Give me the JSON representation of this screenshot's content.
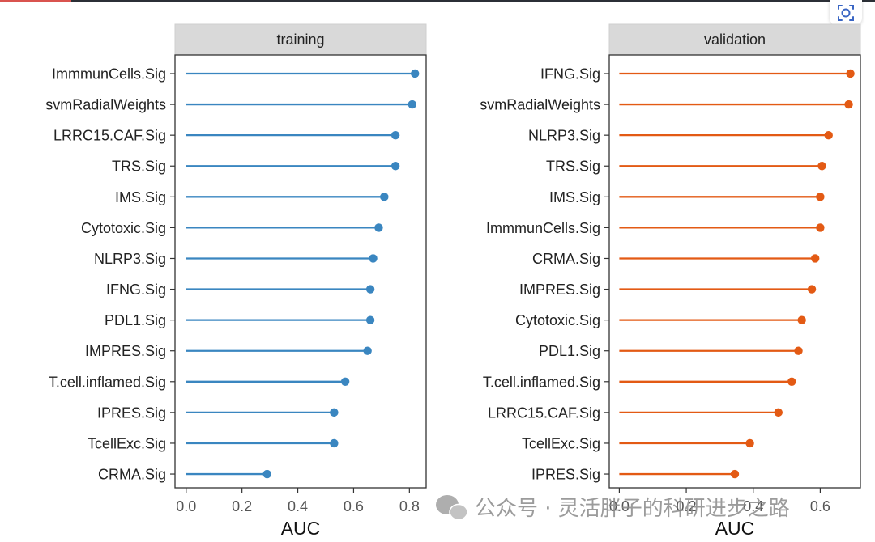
{
  "icons": {
    "scan": "scan-icon",
    "wechat": "wechat-logo-icon"
  },
  "watermark": {
    "text": "公众号 · 灵活胖子的科研进步之路"
  },
  "colors": {
    "training": "#3a86c0",
    "validation": "#e35a14",
    "highlight": "#e8271f",
    "strip": "#d9d9d9",
    "panel_border": "#333333"
  },
  "chart_data": [
    {
      "type": "lollipop",
      "title": "training",
      "xlabel": "AUC",
      "xlim": [
        -0.04,
        0.86
      ],
      "xticks": [
        0.0,
        0.2,
        0.4,
        0.6,
        0.8
      ],
      "xtick_labels": [
        "0.0",
        "0.2",
        "0.4",
        "0.6",
        "0.8"
      ],
      "highlight": "svmRadialWeights",
      "categories": [
        "ImmmunCells.Sig",
        "svmRadialWeights",
        "LRRC15.CAF.Sig",
        "TRS.Sig",
        "IMS.Sig",
        "Cytotoxic.Sig",
        "NLRP3.Sig",
        "IFNG.Sig",
        "PDL1.Sig",
        "IMPRES.Sig",
        "T.cell.inflamed.Sig",
        "IPRES.Sig",
        "TcellExc.Sig",
        "CRMA.Sig"
      ],
      "values": [
        0.82,
        0.81,
        0.75,
        0.75,
        0.71,
        0.69,
        0.67,
        0.66,
        0.66,
        0.65,
        0.57,
        0.53,
        0.53,
        0.29
      ]
    },
    {
      "type": "lollipop",
      "title": "validation",
      "xlabel": "AUC",
      "xlim": [
        -0.03,
        0.72
      ],
      "xticks": [
        0.0,
        0.2,
        0.4,
        0.6
      ],
      "xtick_labels": [
        "0.0",
        "0.2",
        "0.4",
        "0.6"
      ],
      "highlight": "svmRadialWeights",
      "categories": [
        "IFNG.Sig",
        "svmRadialWeights",
        "NLRP3.Sig",
        "TRS.Sig",
        "IMS.Sig",
        "ImmmunCells.Sig",
        "CRMA.Sig",
        "IMPRES.Sig",
        "Cytotoxic.Sig",
        "PDL1.Sig",
        "T.cell.inflamed.Sig",
        "LRRC15.CAF.Sig",
        "TcellExc.Sig",
        "IPRES.Sig"
      ],
      "values": [
        0.69,
        0.685,
        0.625,
        0.605,
        0.6,
        0.6,
        0.585,
        0.575,
        0.545,
        0.535,
        0.515,
        0.475,
        0.39,
        0.345
      ]
    }
  ]
}
